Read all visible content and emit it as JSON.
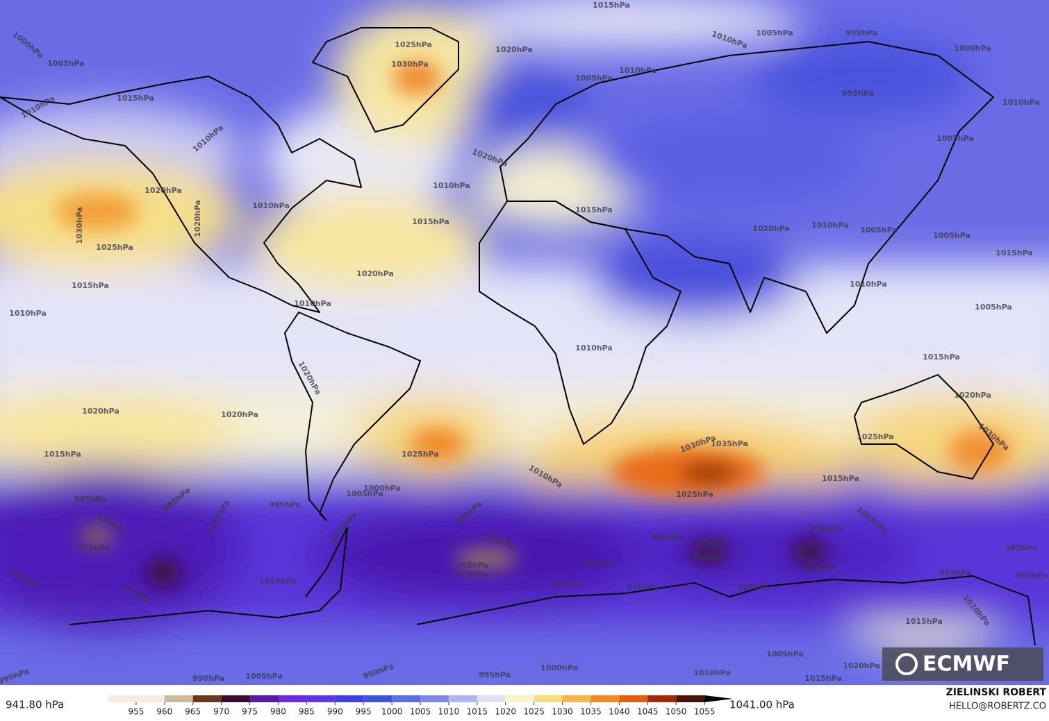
{
  "isobar_labels": [
    "1015hPa",
    "1010hPa",
    "1005hPa",
    "995hPa",
    "1000hPa",
    "1000hPa",
    "1005hPa",
    "1025hPa",
    "1030hPa",
    "1020hPa",
    "1010hPa",
    "1005hPa",
    "995hPa",
    "1010hPa",
    "1015hPa",
    "1010hPa",
    "1010hPa",
    "1020hPa",
    "1010hPa",
    "1005hPa",
    "1020hPa",
    "1010hPa",
    "1020hPa",
    "1030hPa",
    "1015hPa",
    "1025hPa",
    "1015hPa",
    "1020hPa",
    "1010hPa",
    "1005hPa",
    "1005hPa",
    "1015hPa",
    "1020hPa",
    "1015hPa",
    "1010hPa",
    "1005hPa",
    "1010hPa",
    "1010hPa",
    "1010hPa",
    "1015hPa",
    "1020hPa",
    "1020hPa",
    "1020hPa",
    "1020hPa",
    "1015hPa",
    "1025hPa",
    "1025hPa",
    "1030hPa",
    "1030hPa",
    "1035hPa",
    "1010hPa",
    "1015hPa",
    "1025hPa",
    "1005hPa",
    "1000hPa",
    "985hPa",
    "985hPa",
    "995hPa",
    "975hPa",
    "970hPa",
    "1000hPa",
    "1020hPa",
    "985hPa",
    "970hPa",
    "965hPa",
    "975hPa",
    "1005hPa",
    "990hPa",
    "975hPa",
    "970hPa",
    "980hPa",
    "980hPa",
    "975hPa",
    "985hPa",
    "975hPa",
    "975hPa",
    "995hPa",
    "990hPa",
    "985hPa",
    "980hPa",
    "975hPa",
    "1015hPa",
    "1015hPa",
    "1020hPa",
    "1005hPa",
    "1000hPa",
    "1010hPa",
    "1015hPa",
    "1020hPa",
    "995hPa",
    "990hPa",
    "990hPa",
    "990hPa",
    "1005hPa"
  ],
  "logo": "ECMWF",
  "credit": {
    "name": "ZIELINSKI ROBERT",
    "contact": "HELLO@ROBERTZ.CO"
  },
  "colorbar": {
    "min_label": "941.80 hPa",
    "max_label": "1041.00 hPa",
    "lim": [
      950,
      1060
    ],
    "ticks": [
      955,
      960,
      965,
      970,
      975,
      980,
      985,
      990,
      995,
      1000,
      1005,
      1010,
      1015,
      1020,
      1025,
      1030,
      1035,
      1040,
      1045,
      1050,
      1055
    ],
    "colors": [
      "#f3ece0",
      "#cdb89a",
      "#6b3a1c",
      "#3b0a30",
      "#5a1aa8",
      "#6a2ae0",
      "#6035e8",
      "#4040e0",
      "#3a55e0",
      "#5a6ee6",
      "#8088ea",
      "#b0b5f0",
      "#e0e0f5",
      "#fbf3c8",
      "#f8dc80",
      "#f5b848",
      "#f28a20",
      "#e85a10",
      "#a02a08",
      "#4a1408",
      "#000000"
    ]
  }
}
